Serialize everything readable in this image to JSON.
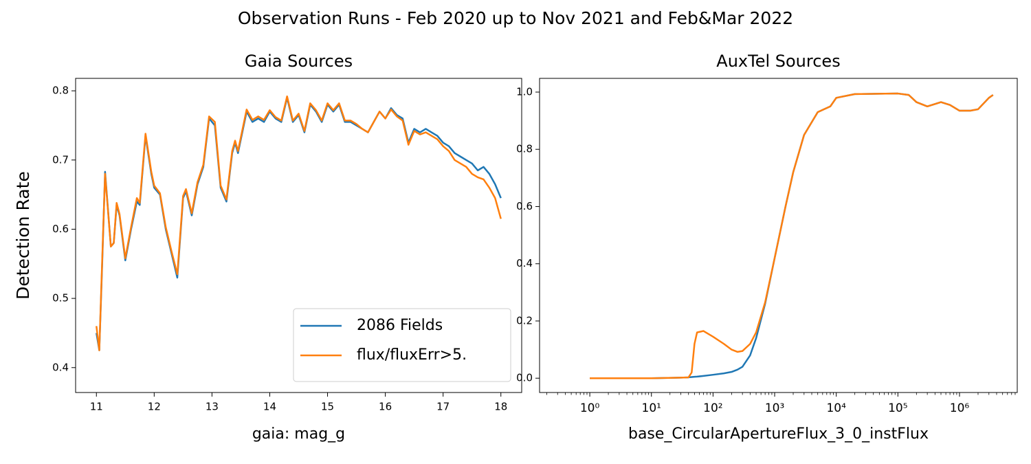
{
  "title": "Observation Runs - Feb 2020 up to Nov 2021 and Feb&Mar 2022",
  "chart_data": [
    {
      "type": "line",
      "title": "Gaia Sources",
      "xlabel": "gaia: mag_g",
      "ylabel": "Detection Rate",
      "xscale": "linear",
      "grid": false,
      "legend": "lower right",
      "x": [
        11.0,
        11.05,
        11.1,
        11.15,
        11.25,
        11.3,
        11.35,
        11.4,
        11.5,
        11.6,
        11.7,
        11.75,
        11.85,
        11.95,
        12.0,
        12.1,
        12.2,
        12.3,
        12.4,
        12.5,
        12.55,
        12.65,
        12.75,
        12.85,
        12.95,
        13.05,
        13.15,
        13.25,
        13.35,
        13.4,
        13.45,
        13.6,
        13.7,
        13.8,
        13.9,
        14.0,
        14.1,
        14.2,
        14.3,
        14.4,
        14.5,
        14.6,
        14.7,
        14.8,
        14.9,
        15.0,
        15.1,
        15.2,
        15.3,
        15.4,
        15.5,
        15.6,
        15.7,
        15.8,
        15.9,
        16.0,
        16.1,
        16.2,
        16.3,
        16.4,
        16.5,
        16.6,
        16.7,
        16.8,
        16.9,
        17.0,
        17.1,
        17.2,
        17.3,
        17.4,
        17.5,
        17.6,
        17.7,
        17.8,
        17.9,
        18.0
      ],
      "series": [
        {
          "name": "2086 Fields",
          "color": "#1f77b4",
          "values": [
            0.45,
            0.425,
            0.55,
            0.683,
            0.575,
            0.58,
            0.635,
            0.62,
            0.555,
            0.6,
            0.64,
            0.635,
            0.735,
            0.68,
            0.66,
            0.65,
            0.6,
            0.565,
            0.53,
            0.645,
            0.655,
            0.62,
            0.665,
            0.69,
            0.76,
            0.75,
            0.66,
            0.64,
            0.71,
            0.725,
            0.71,
            0.77,
            0.755,
            0.76,
            0.755,
            0.77,
            0.76,
            0.755,
            0.79,
            0.755,
            0.765,
            0.74,
            0.78,
            0.77,
            0.755,
            0.78,
            0.77,
            0.78,
            0.755,
            0.755,
            0.75,
            0.745,
            0.74,
            0.755,
            0.77,
            0.76,
            0.775,
            0.765,
            0.76,
            0.725,
            0.745,
            0.74,
            0.745,
            0.74,
            0.735,
            0.725,
            0.72,
            0.71,
            0.705,
            0.7,
            0.695,
            0.685,
            0.69,
            0.68,
            0.665,
            0.645
          ]
        },
        {
          "name": "flux/fluxErr>5.",
          "color": "#ff7f0e",
          "values": [
            0.46,
            0.425,
            0.555,
            0.68,
            0.575,
            0.58,
            0.638,
            0.622,
            0.558,
            0.603,
            0.645,
            0.638,
            0.738,
            0.683,
            0.663,
            0.652,
            0.603,
            0.568,
            0.535,
            0.648,
            0.658,
            0.623,
            0.668,
            0.693,
            0.763,
            0.755,
            0.663,
            0.643,
            0.713,
            0.728,
            0.713,
            0.773,
            0.758,
            0.763,
            0.758,
            0.772,
            0.762,
            0.757,
            0.792,
            0.757,
            0.767,
            0.742,
            0.782,
            0.772,
            0.757,
            0.782,
            0.772,
            0.782,
            0.757,
            0.757,
            0.752,
            0.745,
            0.74,
            0.755,
            0.77,
            0.76,
            0.773,
            0.763,
            0.757,
            0.722,
            0.742,
            0.737,
            0.74,
            0.735,
            0.73,
            0.72,
            0.713,
            0.7,
            0.695,
            0.69,
            0.68,
            0.675,
            0.672,
            0.66,
            0.645,
            0.615
          ]
        }
      ],
      "xlim": [
        10.64,
        18.36
      ],
      "xticks": [
        11,
        12,
        13,
        14,
        15,
        16,
        17,
        18
      ],
      "ylim": [
        0.364,
        0.818
      ],
      "yticks": [
        0.4,
        0.5,
        0.6,
        0.7,
        0.8
      ]
    },
    {
      "type": "line",
      "title": "AuxTel Sources",
      "xlabel": "base_CircularApertureFlux_3_0_instFlux",
      "xscale": "log",
      "grid": false,
      "x": [
        1,
        3,
        10,
        30,
        40,
        45,
        50,
        55,
        70,
        100,
        150,
        200,
        250,
        300,
        400,
        500,
        700,
        1000,
        1500,
        2000,
        3000,
        5000,
        8000,
        10000,
        20000,
        100000,
        150000,
        200000,
        300000,
        500000,
        700000,
        1000000,
        1500000,
        2000000,
        3000000,
        3500000
      ],
      "series": [
        {
          "color": "#1f77b4",
          "values": [
            0.0,
            0.0,
            0.0,
            0.002,
            0.003,
            0.004,
            0.005,
            0.0055,
            0.008,
            0.012,
            0.017,
            0.022,
            0.03,
            0.04,
            0.08,
            0.14,
            0.26,
            0.42,
            0.6,
            0.72,
            0.85,
            0.93,
            0.95,
            0.98,
            0.993,
            0.995,
            0.99,
            0.965,
            0.95,
            0.965,
            0.955,
            0.935,
            0.935,
            0.94,
            0.98,
            0.99
          ]
        },
        {
          "color": "#ff7f0e",
          "values": [
            0.0,
            0.0,
            0.0,
            0.002,
            0.003,
            0.02,
            0.12,
            0.16,
            0.165,
            0.145,
            0.12,
            0.1,
            0.092,
            0.095,
            0.12,
            0.16,
            0.265,
            0.42,
            0.6,
            0.72,
            0.85,
            0.93,
            0.95,
            0.98,
            0.993,
            0.995,
            0.99,
            0.965,
            0.95,
            0.965,
            0.955,
            0.935,
            0.935,
            0.94,
            0.98,
            0.99
          ]
        }
      ],
      "xlim": [
        0.153,
        8650000
      ],
      "xticks": [
        {
          "value": 1,
          "label": "10⁰"
        },
        {
          "value": 10,
          "label": "10¹"
        },
        {
          "value": 100,
          "label": "10²"
        },
        {
          "value": 1000,
          "label": "10³"
        },
        {
          "value": 10000,
          "label": "10⁴"
        },
        {
          "value": 100000,
          "label": "10⁵"
        },
        {
          "value": 1000000,
          "label": "10⁶"
        }
      ],
      "ylim": [
        -0.05,
        1.048
      ],
      "yticks": [
        {
          "value": 0,
          "label": "0.0"
        },
        0.2,
        0.4,
        0.6,
        0.8,
        {
          "value": 1,
          "label": "1.0"
        }
      ]
    }
  ]
}
